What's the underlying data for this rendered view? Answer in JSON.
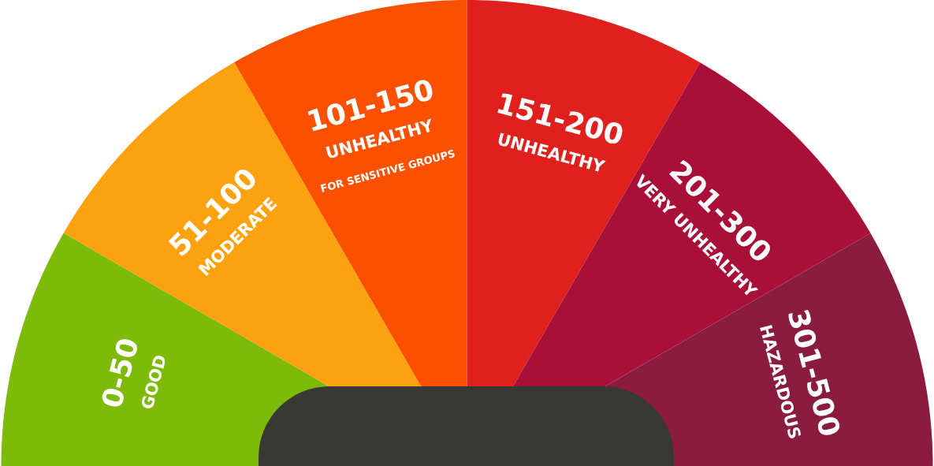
{
  "chart_data": {
    "type": "donut",
    "categories": [
      "0-50\nGOOD",
      "51-100\nMODERATE",
      "101-150\nUNHEALTHY\nFOR SENSITIVE GROUPS",
      "151-200\nUNHEALTHY",
      "201-300\nVERY UNHEALTHY",
      "301-500\nHAZARDOUS"
    ],
    "values": [
      16.67,
      16.67,
      16.67,
      16.67,
      16.67,
      16.65
    ],
    "colors": [
      "#7dba0a",
      "#fca211",
      "#fb5000",
      "#df201d",
      "#a8103a",
      "#8a1c40"
    ]
  }
}
